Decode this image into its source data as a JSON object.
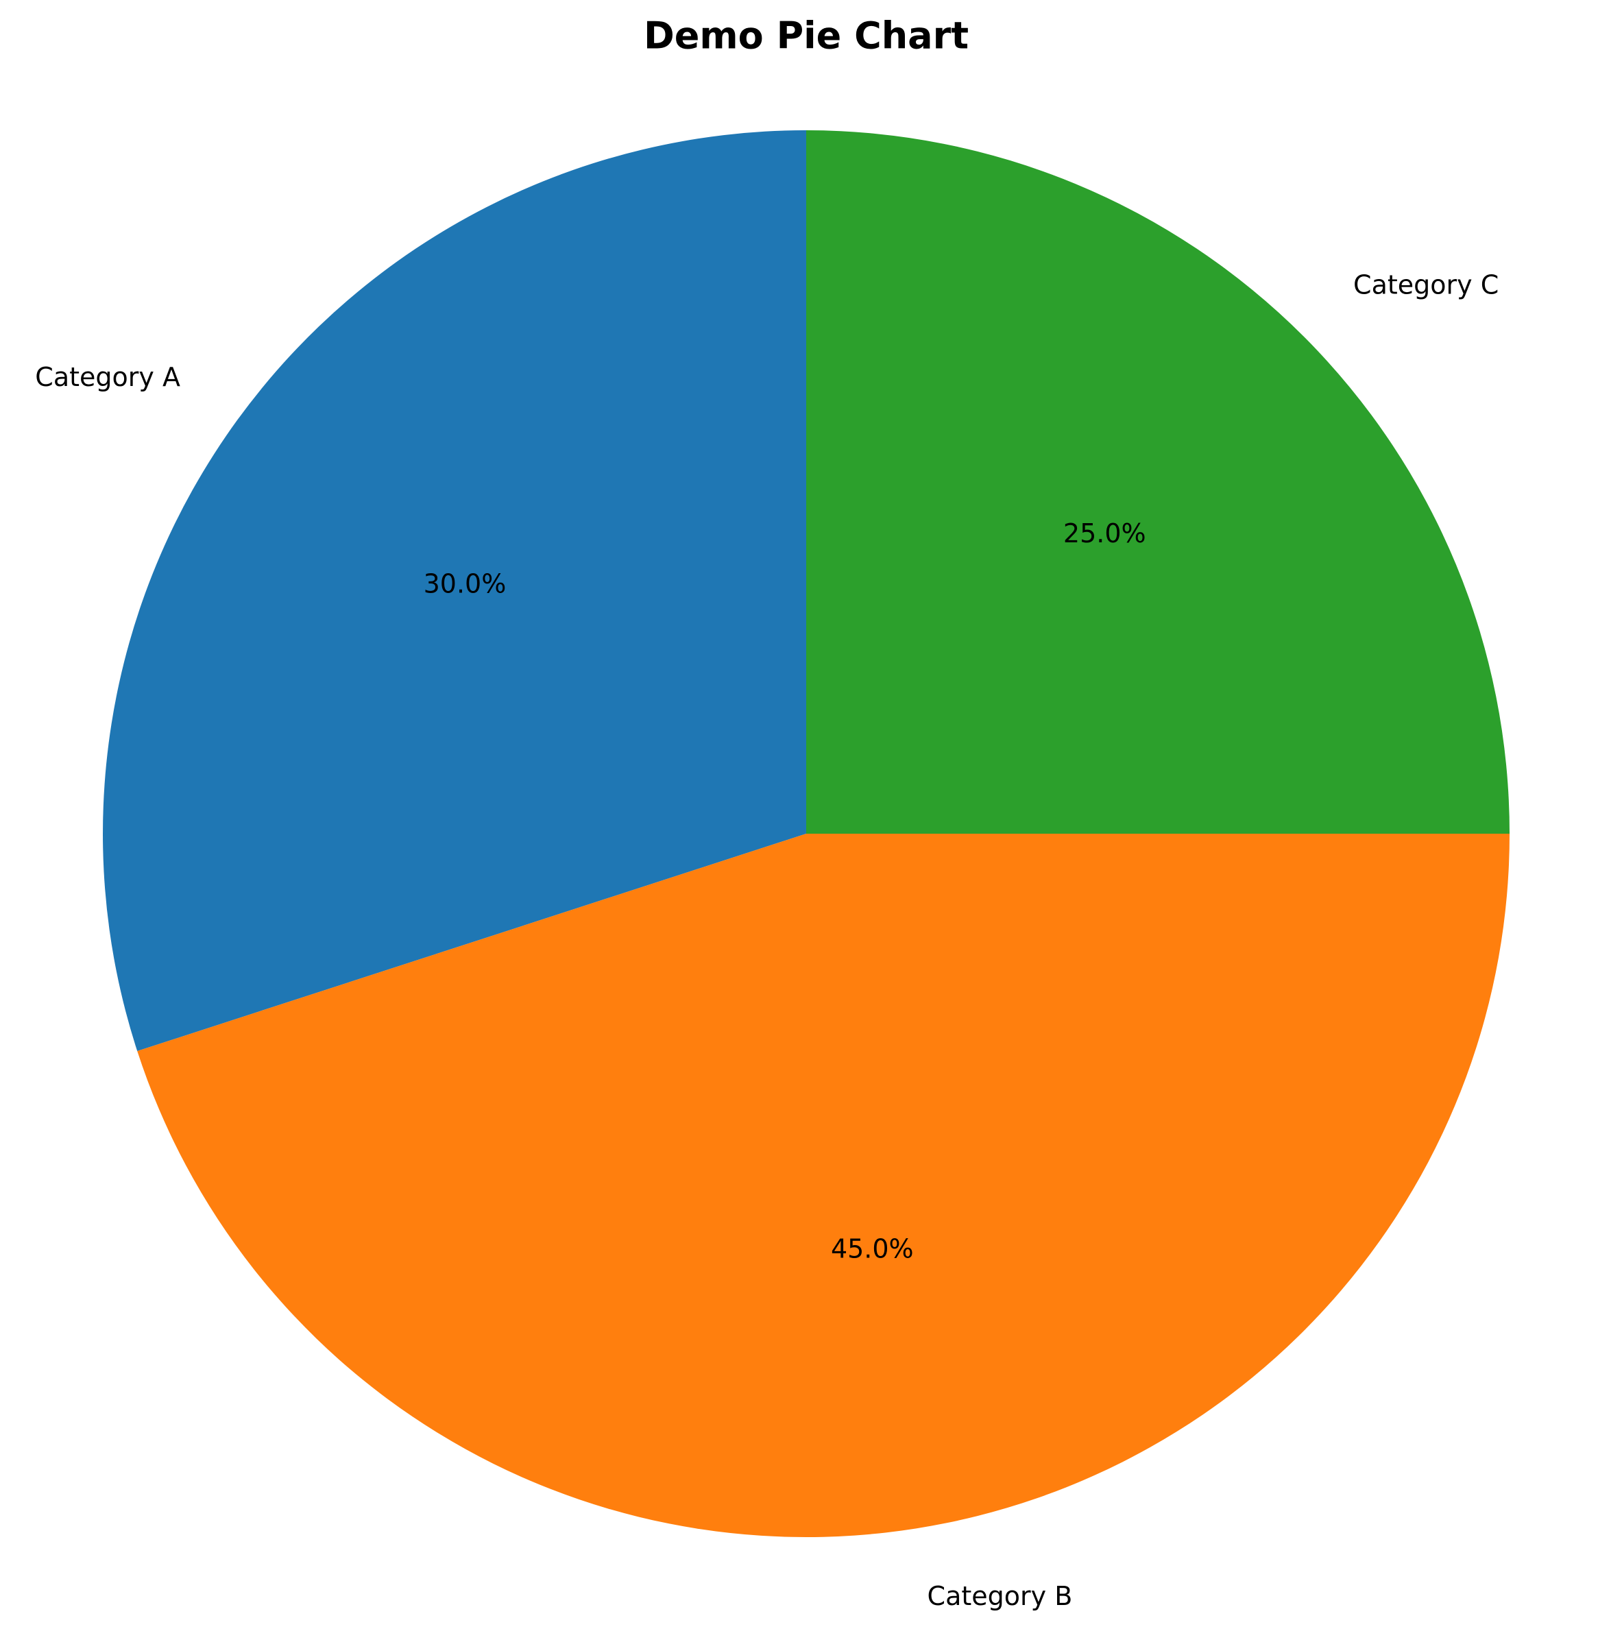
{
  "chart_data": {
    "type": "pie",
    "title": "Demo Pie Chart",
    "categories": [
      "Category A",
      "Category B",
      "Category C"
    ],
    "values": [
      30.0,
      45.0,
      25.0
    ],
    "autopct_labels": [
      "30.0%",
      "45.0%",
      "25.0%"
    ],
    "colors": [
      "#1f77b4",
      "#ff7f0e",
      "#2ca02c"
    ],
    "start_angle_deg": 90,
    "direction": "counterclockwise",
    "legend": "none"
  }
}
